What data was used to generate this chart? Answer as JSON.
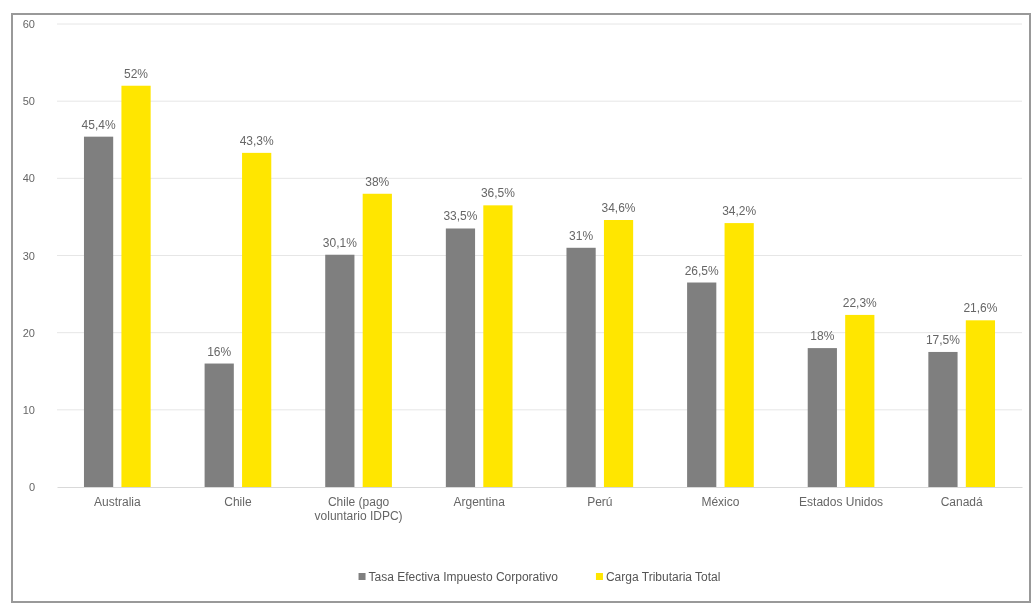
{
  "chart_data": {
    "type": "bar",
    "categories": [
      "Australia",
      "Chile",
      "Chile (pago voluntario IDPC)",
      "Argentina",
      "Perú",
      "México",
      "Estados Unidos",
      "Canadá"
    ],
    "series": [
      {
        "name": "Tasa Efectiva Impuesto Corporativo",
        "color": "#7f7f7f",
        "values": [
          45.4,
          16,
          30.1,
          33.5,
          31,
          26.5,
          18,
          17.5
        ],
        "value_labels": [
          "45,4%",
          "16%",
          "30,1%",
          "33,5%",
          "31%",
          "26,5%",
          "18%",
          "17,5%"
        ]
      },
      {
        "name": "Carga Tributaria Total",
        "color": "#ffe600",
        "values": [
          52,
          43.3,
          38,
          36.5,
          34.6,
          34.2,
          22.3,
          21.6
        ],
        "value_labels": [
          "52%",
          "43,3%",
          "38%",
          "36,5%",
          "34,6%",
          "34,2%",
          "22,3%",
          "21,6%"
        ]
      }
    ],
    "ylim": [
      0,
      60
    ],
    "yticks": [
      0,
      10,
      20,
      30,
      40,
      50,
      60
    ],
    "grid": "y",
    "legend": "bottom"
  }
}
